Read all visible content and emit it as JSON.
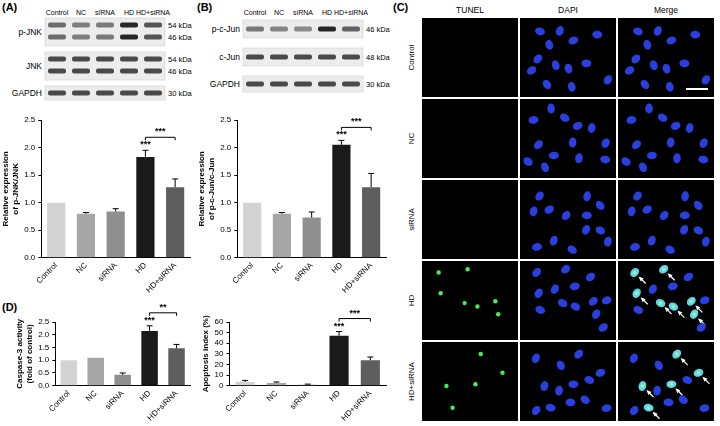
{
  "panel_labels": [
    "(A)",
    "(B)",
    "(C)",
    "(D)"
  ],
  "blots": [
    {
      "lanes": [
        "Control",
        "NC",
        "siRNA",
        "HD",
        "HD+siRNA"
      ],
      "rows": [
        {
          "label": "p-JNK",
          "kda": [
            "54 kDa",
            "46 kDa"
          ]
        },
        {
          "label": "JNK",
          "kda": [
            "54 kDa",
            "46 kDa"
          ]
        },
        {
          "label": "GAPDH",
          "kda": [
            "30 kDa"
          ]
        }
      ]
    },
    {
      "lanes": [
        "Control",
        "NC",
        "siRNA",
        "HD",
        "HD+siRNA"
      ],
      "rows": [
        {
          "label": "p-c-Jun",
          "kda": [
            "46 kDa"
          ]
        },
        {
          "label": "c-Jun",
          "kda": [
            "48 kDa"
          ]
        },
        {
          "label": "GAPDH",
          "kda": [
            "30 kDa"
          ]
        }
      ]
    }
  ],
  "tunel": {
    "columns": [
      "TUNEL",
      "DAPI",
      "Merge"
    ],
    "rows": [
      "Control",
      "NC",
      "siRNA",
      "HD",
      "HD+siRNA"
    ]
  },
  "chart_data": [
    {
      "type": "bar",
      "y_label": [
        "Relative expression",
        "of p-JNK/JNK"
      ],
      "categories": [
        "Control",
        "NC",
        "siRNA",
        "HD",
        "HD+siRNA"
      ],
      "values": [
        1.0,
        0.8,
        0.84,
        1.83,
        1.28
      ],
      "errors": [
        0,
        0.02,
        0.05,
        0.12,
        0.15
      ],
      "colors": [
        "#d3d3d3",
        "#a6a6a6",
        "#8f8f8f",
        "#1a1a1a",
        "#5e5e5e"
      ],
      "ylim": [
        0,
        2.5
      ],
      "yticks": [
        {
          "value": 0,
          "label": "0.0"
        },
        {
          "value": 0.5,
          "label": "0.5"
        },
        {
          "value": 1,
          "label": "1.0"
        },
        {
          "value": 1.5,
          "label": "1.5"
        },
        {
          "value": 2,
          "label": "2.0"
        },
        {
          "value": 2.5,
          "label": "2.5"
        }
      ],
      "grid": false,
      "annotations": [
        {
          "category": "HD",
          "text": "***"
        },
        {
          "from": "HD",
          "to": "HD+siRNA",
          "text": "***"
        }
      ]
    },
    {
      "type": "bar",
      "y_label": [
        "Relative expression",
        "of p-c-Jun/c-Jun"
      ],
      "categories": [
        "Control",
        "NC",
        "siRNA",
        "HD",
        "HD+siRNA"
      ],
      "values": [
        1.0,
        0.8,
        0.73,
        2.05,
        1.28
      ],
      "errors": [
        0,
        0.02,
        0.1,
        0.08,
        0.25
      ],
      "colors": [
        "#d3d3d3",
        "#a6a6a6",
        "#8f8f8f",
        "#1a1a1a",
        "#5e5e5e"
      ],
      "ylim": [
        0,
        2.5
      ],
      "yticks": [
        {
          "value": 0,
          "label": "0.0"
        },
        {
          "value": 0.5,
          "label": "0.5"
        },
        {
          "value": 1,
          "label": "1.0"
        },
        {
          "value": 1.5,
          "label": "1.5"
        },
        {
          "value": 2,
          "label": "2.0"
        },
        {
          "value": 2.5,
          "label": "2.5"
        }
      ],
      "grid": false,
      "annotations": [
        {
          "category": "HD",
          "text": "***"
        },
        {
          "from": "HD",
          "to": "HD+siRNA",
          "text": "***"
        }
      ]
    },
    {
      "type": "bar",
      "y_label": [
        "Caspase-3 activity",
        "(fold of control)"
      ],
      "categories": [
        "Control",
        "NC",
        "siRNA",
        "HD",
        "HD+siRNA"
      ],
      "values": [
        1.0,
        1.1,
        0.43,
        2.15,
        1.47
      ],
      "errors": [
        0,
        0,
        0.07,
        0.2,
        0.15
      ],
      "colors": [
        "#d3d3d3",
        "#a6a6a6",
        "#8f8f8f",
        "#1a1a1a",
        "#5e5e5e"
      ],
      "ylim": [
        0,
        2.5
      ],
      "yticks": [
        {
          "value": 0,
          "label": "0.0"
        },
        {
          "value": 0.5,
          "label": "0.5"
        },
        {
          "value": 1,
          "label": "1.0"
        },
        {
          "value": 1.5,
          "label": "1.5"
        },
        {
          "value": 2,
          "label": "2.0"
        },
        {
          "value": 2.5,
          "label": "2.5"
        }
      ],
      "grid": false,
      "annotations": [
        {
          "category": "HD",
          "text": "***"
        },
        {
          "from": "HD",
          "to": "HD+siRNA",
          "text": "**"
        }
      ]
    },
    {
      "type": "bar",
      "y_label": "Apoptosis index (%)",
      "categories": [
        "Control",
        "NC",
        "siRNA",
        "HD",
        "HD+siRNA"
      ],
      "values": [
        3.5,
        2.5,
        1.0,
        47,
        24
      ],
      "errors": [
        1.5,
        1,
        0.5,
        4,
        3
      ],
      "colors": [
        "#d3d3d3",
        "#a6a6a6",
        "#8f8f8f",
        "#1a1a1a",
        "#5e5e5e"
      ],
      "ylim": [
        0,
        60
      ],
      "yticks": [
        0,
        10,
        20,
        30,
        40,
        50,
        60
      ],
      "grid": false,
      "annotations": [
        {
          "category": "HD",
          "text": "***"
        },
        {
          "from": "HD",
          "to": "HD+siRNA",
          "text": "***"
        }
      ]
    }
  ]
}
